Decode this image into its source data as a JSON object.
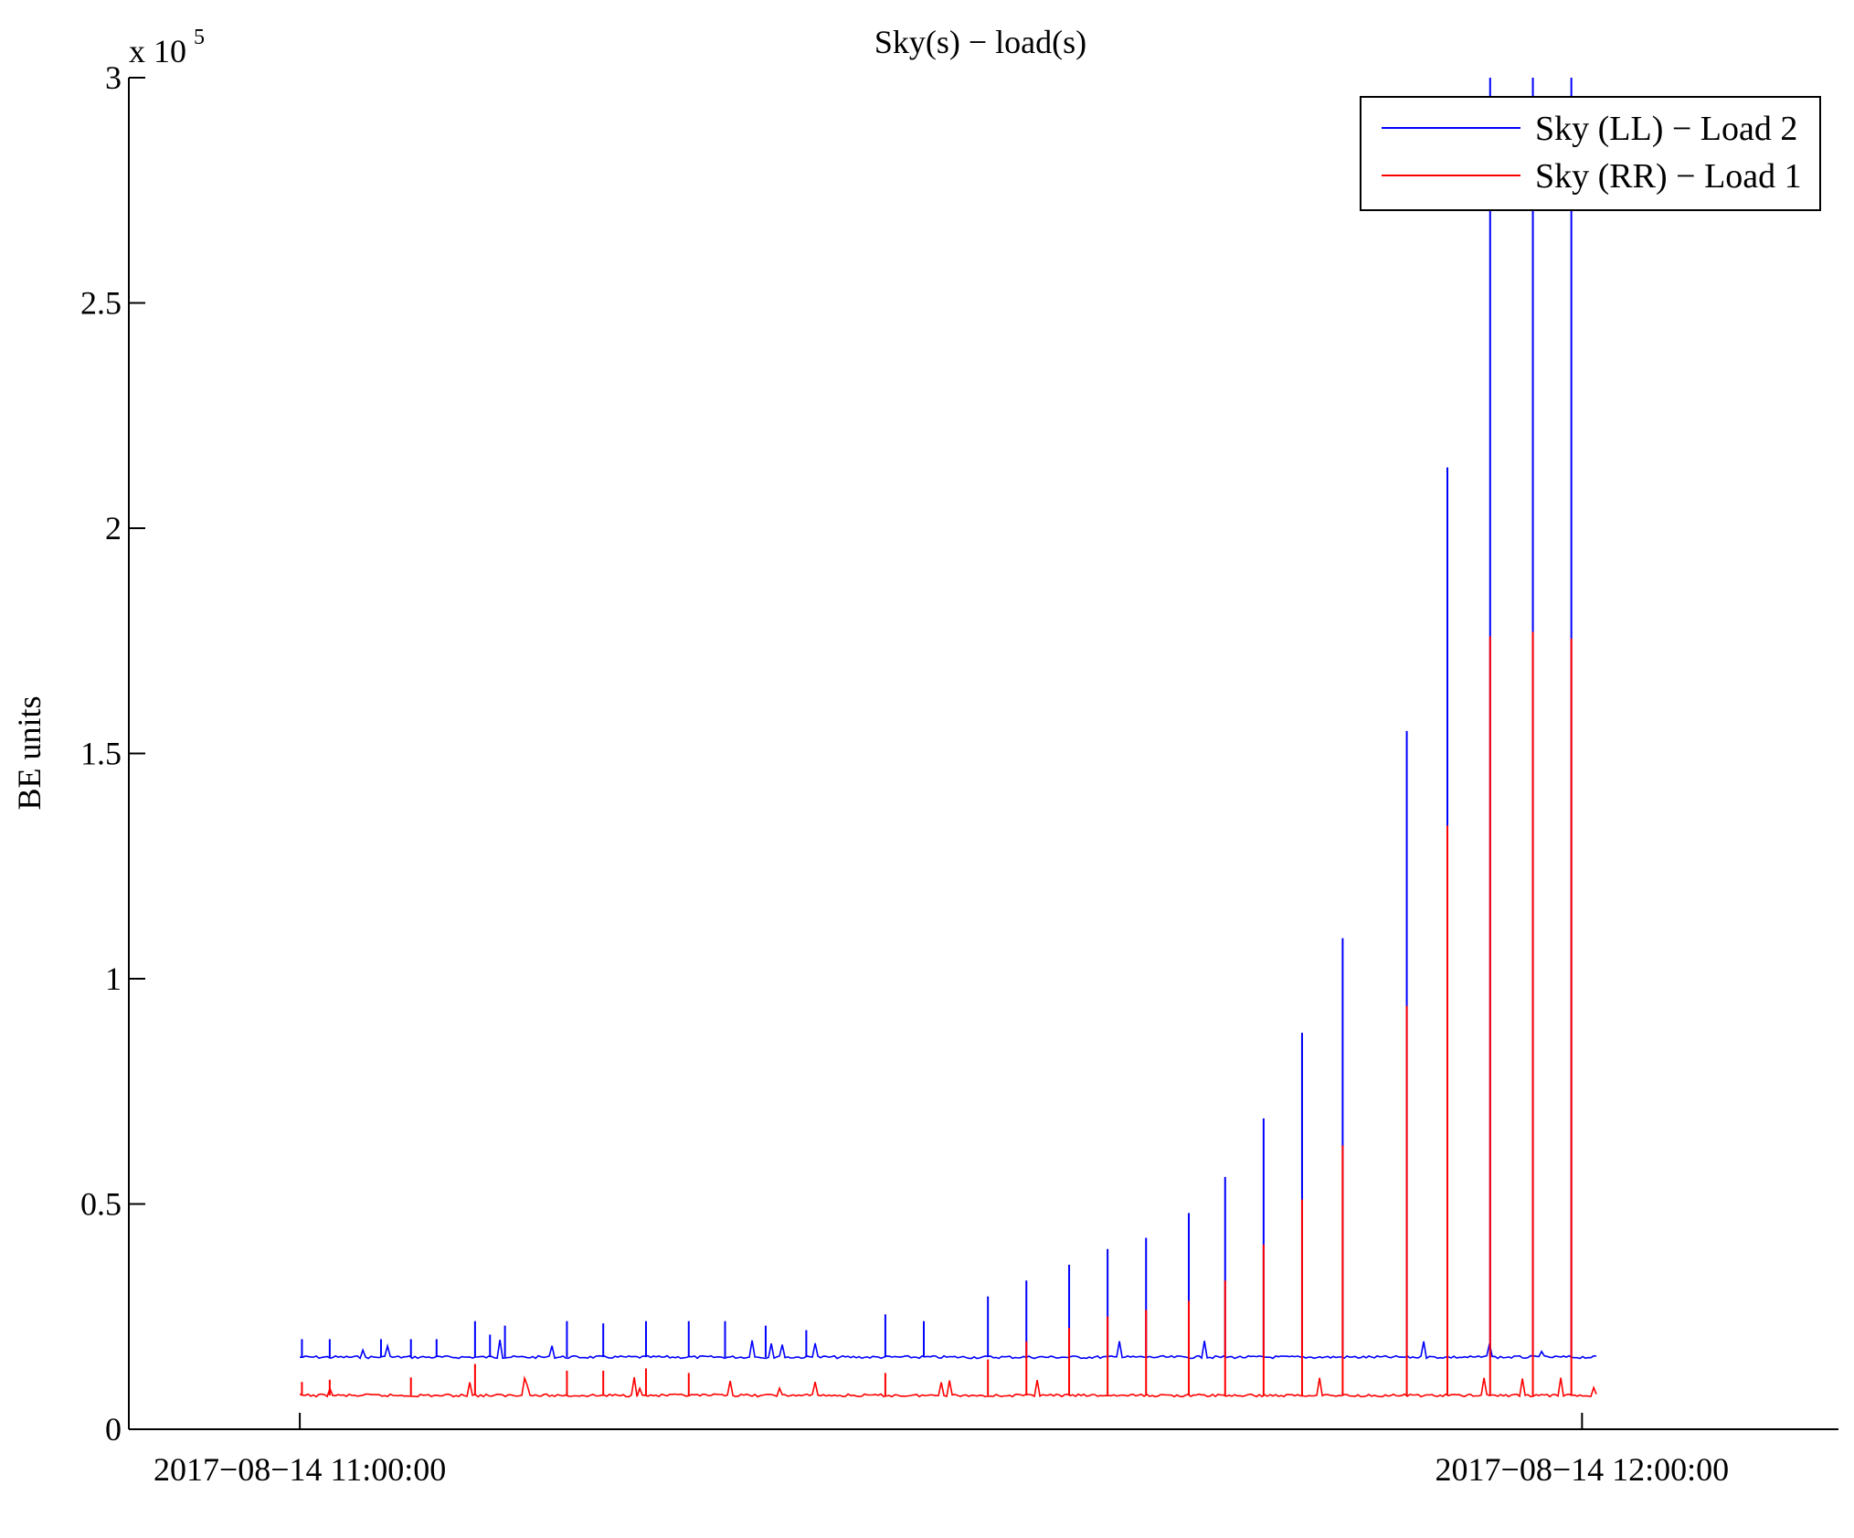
{
  "chart_data": {
    "type": "line",
    "title": "Sky(s) − load(s)",
    "xlabel": "",
    "ylabel": "BE units",
    "y_multiplier": "x 10",
    "y_multiplier_exponent": "5",
    "ylim": [
      0,
      300000
    ],
    "yticks": [
      {
        "value": 0,
        "label": "0"
      },
      {
        "value": 50000,
        "label": "0.5"
      },
      {
        "value": 100000,
        "label": "1"
      },
      {
        "value": 150000,
        "label": "1.5"
      },
      {
        "value": 200000,
        "label": "2"
      },
      {
        "value": 250000,
        "label": "2.5"
      },
      {
        "value": 300000,
        "label": "3"
      }
    ],
    "xlim": [
      "2017-08-14 10:52:00",
      "2017-08-14 12:12:00"
    ],
    "xticks": [
      {
        "value": "2017-08-14 11:00:00",
        "label": "2017−08−14 11:00:00"
      },
      {
        "value": "2017-08-14 12:00:00",
        "label": "2017−08−14 12:00:00"
      }
    ],
    "legend_position": "top-right",
    "grid": false,
    "x_start": "2017-08-14 11:00:00",
    "x_end": "2017-08-14 12:00:45",
    "series": [
      {
        "name": "Sky (LL) − Load 2",
        "color": "#0000ff",
        "baseline": 16000,
        "spikes": [
          {
            "t": "2017-08-14 11:00:06",
            "y": 20000
          },
          {
            "t": "2017-08-14 11:01:24",
            "y": 20000
          },
          {
            "t": "2017-08-14 11:03:48",
            "y": 20000
          },
          {
            "t": "2017-08-14 11:05:12",
            "y": 20000
          },
          {
            "t": "2017-08-14 11:06:24",
            "y": 20000
          },
          {
            "t": "2017-08-14 11:08:12",
            "y": 24000
          },
          {
            "t": "2017-08-14 11:08:54",
            "y": 21000
          },
          {
            "t": "2017-08-14 11:09:36",
            "y": 23000
          },
          {
            "t": "2017-08-14 11:12:30",
            "y": 24000
          },
          {
            "t": "2017-08-14 11:14:12",
            "y": 23500
          },
          {
            "t": "2017-08-14 11:16:12",
            "y": 24000
          },
          {
            "t": "2017-08-14 11:18:12",
            "y": 24000
          },
          {
            "t": "2017-08-14 11:19:54",
            "y": 24000
          },
          {
            "t": "2017-08-14 11:21:48",
            "y": 23000
          },
          {
            "t": "2017-08-14 11:23:42",
            "y": 22000
          },
          {
            "t": "2017-08-14 11:27:24",
            "y": 25500
          },
          {
            "t": "2017-08-14 11:29:12",
            "y": 24000
          },
          {
            "t": "2017-08-14 11:32:12",
            "y": 29500
          },
          {
            "t": "2017-08-14 11:34:00",
            "y": 33000
          },
          {
            "t": "2017-08-14 11:36:00",
            "y": 36500
          },
          {
            "t": "2017-08-14 11:37:48",
            "y": 40000
          },
          {
            "t": "2017-08-14 11:39:36",
            "y": 42500
          },
          {
            "t": "2017-08-14 11:41:36",
            "y": 48000
          },
          {
            "t": "2017-08-14 11:43:18",
            "y": 56000
          },
          {
            "t": "2017-08-14 11:45:06",
            "y": 69000
          },
          {
            "t": "2017-08-14 11:46:54",
            "y": 88000
          },
          {
            "t": "2017-08-14 11:48:48",
            "y": 109000
          },
          {
            "t": "2017-08-14 11:51:48",
            "y": 155000
          },
          {
            "t": "2017-08-14 11:53:42",
            "y": 213500
          },
          {
            "t": "2017-08-14 11:55:42",
            "y": 300000
          },
          {
            "t": "2017-08-14 11:57:42",
            "y": 300000
          },
          {
            "t": "2017-08-14 11:59:30",
            "y": 300000
          }
        ]
      },
      {
        "name": "Sky (RR) − Load 1",
        "color": "#ff0000",
        "baseline": 7500,
        "spikes": [
          {
            "t": "2017-08-14 11:00:06",
            "y": 10500
          },
          {
            "t": "2017-08-14 11:01:24",
            "y": 11000
          },
          {
            "t": "2017-08-14 11:05:12",
            "y": 11500
          },
          {
            "t": "2017-08-14 11:08:12",
            "y": 14500
          },
          {
            "t": "2017-08-14 11:12:30",
            "y": 13000
          },
          {
            "t": "2017-08-14 11:14:12",
            "y": 13000
          },
          {
            "t": "2017-08-14 11:16:12",
            "y": 13500
          },
          {
            "t": "2017-08-14 11:18:12",
            "y": 12500
          },
          {
            "t": "2017-08-14 11:27:24",
            "y": 12500
          },
          {
            "t": "2017-08-14 11:32:12",
            "y": 15500
          },
          {
            "t": "2017-08-14 11:34:00",
            "y": 19500
          },
          {
            "t": "2017-08-14 11:36:00",
            "y": 22500
          },
          {
            "t": "2017-08-14 11:37:48",
            "y": 25000
          },
          {
            "t": "2017-08-14 11:39:36",
            "y": 26500
          },
          {
            "t": "2017-08-14 11:41:36",
            "y": 28500
          },
          {
            "t": "2017-08-14 11:43:18",
            "y": 33000
          },
          {
            "t": "2017-08-14 11:45:06",
            "y": 41000
          },
          {
            "t": "2017-08-14 11:46:54",
            "y": 51000
          },
          {
            "t": "2017-08-14 11:48:48",
            "y": 63000
          },
          {
            "t": "2017-08-14 11:51:48",
            "y": 94000
          },
          {
            "t": "2017-08-14 11:53:42",
            "y": 134000
          },
          {
            "t": "2017-08-14 11:55:42",
            "y": 176000
          },
          {
            "t": "2017-08-14 11:57:42",
            "y": 177000
          },
          {
            "t": "2017-08-14 11:59:30",
            "y": 175500
          }
        ]
      }
    ]
  }
}
